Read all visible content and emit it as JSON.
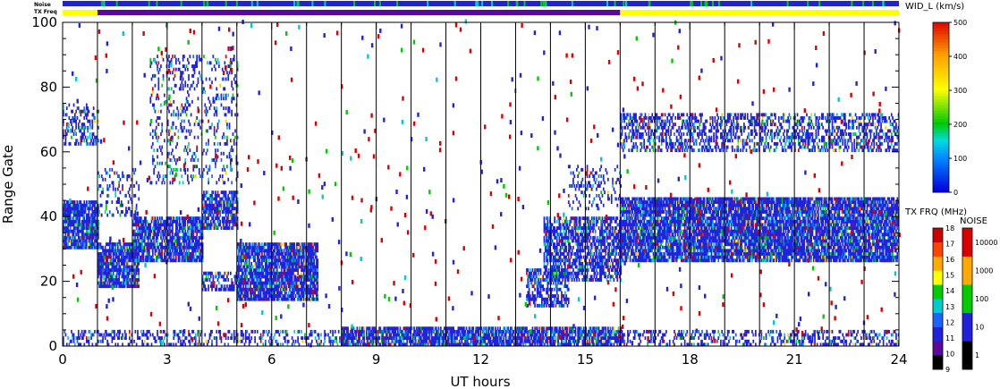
{
  "chart_data": {
    "type": "heatmap",
    "xlabel": "UT hours",
    "ylabel": "Range Gate",
    "xlim": [
      0,
      24
    ],
    "ylim": [
      0,
      100
    ],
    "x_ticks": [
      "0",
      "3",
      "6",
      "9",
      "12",
      "15",
      "18",
      "21",
      "24"
    ],
    "y_ticks": [
      "0",
      "20",
      "40",
      "60",
      "80",
      "100"
    ],
    "grid": "vertical lines every 1 UT hour",
    "status_bars": {
      "noise_label": "Noise",
      "txfreq_label": "TX Freq",
      "txfreq_segments": [
        {
          "from": 0,
          "to": 1,
          "color": "#ffff00"
        },
        {
          "from": 1,
          "to": 16,
          "color": "#5a0a9a"
        },
        {
          "from": 16,
          "to": 24,
          "color": "#ffff00"
        }
      ]
    },
    "colorbars": {
      "width": {
        "title": "WID_L (km/s)",
        "ticks": [
          "0",
          "100",
          "200",
          "300",
          "400",
          "500"
        ],
        "range": [
          0,
          500
        ]
      },
      "txfreq": {
        "title": "TX FRQ (MHz)",
        "ticks": [
          "9",
          "10",
          "11",
          "12",
          "13",
          "14",
          "15",
          "16",
          "17",
          "18"
        ],
        "colors": [
          "#000000",
          "#5a0a9a",
          "#2222dd",
          "#1a64ff",
          "#00cccc",
          "#00cc00",
          "#ffff00",
          "#ffaa00",
          "#ff4400",
          "#cc0000"
        ]
      },
      "noise": {
        "title": "NOISE",
        "ticks": [
          "1",
          "10",
          "100",
          "1000",
          "10000"
        ],
        "colors": [
          "#000000",
          "#2222dd",
          "#00cc00",
          "#ffaa00",
          "#dd0000"
        ]
      }
    },
    "echo_regions": [
      {
        "t0": 0,
        "t1": 1,
        "g0": 30,
        "g1": 45,
        "density": 0.85
      },
      {
        "t0": 0,
        "t1": 1,
        "g0": 62,
        "g1": 75,
        "density": 0.35
      },
      {
        "t0": 1,
        "t1": 2.2,
        "g0": 18,
        "g1": 32,
        "density": 0.85
      },
      {
        "t0": 1,
        "t1": 2.2,
        "g0": 40,
        "g1": 55,
        "density": 0.25
      },
      {
        "t0": 2,
        "t1": 4,
        "g0": 26,
        "g1": 40,
        "density": 0.8
      },
      {
        "t0": 4,
        "t1": 5,
        "g0": 36,
        "g1": 48,
        "density": 0.75
      },
      {
        "t0": 2.5,
        "t1": 5,
        "g0": 50,
        "g1": 90,
        "density": 0.18
      },
      {
        "t0": 4,
        "t1": 5,
        "g0": 17,
        "g1": 23,
        "density": 0.55
      },
      {
        "t0": 5,
        "t1": 7.3,
        "g0": 14,
        "g1": 32,
        "density": 0.85
      },
      {
        "t0": 0,
        "t1": 24,
        "g0": 0,
        "g1": 5,
        "density": 0.35
      },
      {
        "t0": 8,
        "t1": 16,
        "g0": 0,
        "g1": 6,
        "density": 0.7
      },
      {
        "t0": 13.3,
        "t1": 14.5,
        "g0": 12,
        "g1": 24,
        "density": 0.55
      },
      {
        "t0": 13.8,
        "t1": 16,
        "g0": 20,
        "g1": 40,
        "density": 0.65
      },
      {
        "t0": 14.5,
        "t1": 16,
        "g0": 42,
        "g1": 56,
        "density": 0.2
      },
      {
        "t0": 16,
        "t1": 24,
        "g0": 26,
        "g1": 46,
        "density": 0.85
      },
      {
        "t0": 16,
        "t1": 24,
        "g0": 60,
        "g1": 72,
        "density": 0.45
      }
    ],
    "scatter_note": "sparse random echoes over the full grid"
  }
}
